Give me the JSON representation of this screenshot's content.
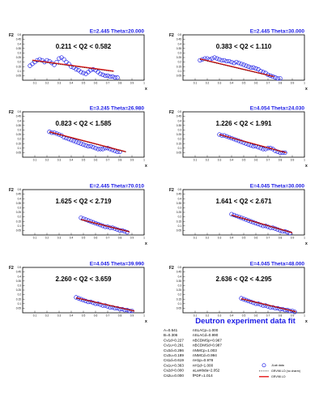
{
  "chart_data": [
    {
      "type": "scatter",
      "title": "E=2.445 Theta=20.000",
      "range_label": "0.211 < Q2 < 0.582",
      "xlabel": "x",
      "ylabel": "F2",
      "xlim": [
        0,
        1
      ],
      "ylim": [
        0,
        0.5
      ],
      "xticks": [
        "0.1",
        "0.2",
        "0.3",
        "0.4",
        "0.5",
        "0.6",
        "0.7",
        "0.8",
        "0.9",
        "1"
      ],
      "yticks": [
        "0.05",
        "0.1",
        "0.15",
        "0.2",
        "0.25",
        "0.3",
        "0.35",
        "0.4",
        "0.45",
        "0.5"
      ],
      "series": [
        {
          "role": "data",
          "x": [
            0.06,
            0.08,
            0.1,
            0.12,
            0.14,
            0.16,
            0.18,
            0.2,
            0.22,
            0.24,
            0.26,
            0.28,
            0.3,
            0.32,
            0.34,
            0.36,
            0.38,
            0.4,
            0.42,
            0.44,
            0.46,
            0.48,
            0.5,
            0.52,
            0.54,
            0.56,
            0.58,
            0.6,
            0.62,
            0.64,
            0.66,
            0.68,
            0.7,
            0.72,
            0.74,
            0.76,
            0.78
          ],
          "y": [
            0.16,
            0.18,
            0.2,
            0.22,
            0.23,
            0.22,
            0.2,
            0.22,
            0.21,
            0.19,
            0.17,
            0.2,
            0.24,
            0.25,
            0.23,
            0.2,
            0.18,
            0.15,
            0.14,
            0.12,
            0.11,
            0.09,
            0.08,
            0.07,
            0.09,
            0.11,
            0.12,
            0.11,
            0.09,
            0.07,
            0.06,
            0.05,
            0.05,
            0.04,
            0.04,
            0.03,
            0.03
          ]
        },
        {
          "role": "fit",
          "x": [
            0.08,
            0.75
          ],
          "y": [
            0.22,
            0.1
          ]
        },
        {
          "role": "fit_nocharm",
          "x": [
            0.08,
            0.75
          ],
          "y": [
            0.215,
            0.095
          ]
        }
      ]
    },
    {
      "type": "scatter",
      "title": "E=2.445 Theta=30.000",
      "range_label": "0.383 < Q2 < 1.110",
      "xlabel": "x",
      "ylabel": "F2",
      "xlim": [
        0,
        1
      ],
      "ylim": [
        0,
        0.5
      ],
      "xticks": [
        "0.1",
        "0.2",
        "0.3",
        "0.4",
        "0.5",
        "0.6",
        "0.7",
        "0.8",
        "0.9",
        "1"
      ],
      "yticks": [
        "0.05",
        "0.1",
        "0.15",
        "0.2",
        "0.25",
        "0.3",
        "0.35",
        "0.4",
        "0.45",
        "0.5"
      ],
      "series": [
        {
          "role": "data",
          "x": [
            0.14,
            0.16,
            0.18,
            0.2,
            0.22,
            0.24,
            0.26,
            0.28,
            0.3,
            0.32,
            0.34,
            0.36,
            0.38,
            0.4,
            0.42,
            0.44,
            0.46,
            0.48,
            0.5,
            0.52,
            0.54,
            0.56,
            0.58,
            0.6,
            0.62,
            0.64,
            0.66,
            0.68,
            0.7,
            0.72,
            0.74,
            0.76,
            0.78,
            0.8
          ],
          "y": [
            0.22,
            0.23,
            0.24,
            0.24,
            0.23,
            0.24,
            0.25,
            0.24,
            0.23,
            0.22,
            0.22,
            0.21,
            0.21,
            0.2,
            0.19,
            0.2,
            0.19,
            0.18,
            0.17,
            0.16,
            0.15,
            0.14,
            0.14,
            0.13,
            0.12,
            0.1,
            0.09,
            0.08,
            0.06,
            0.05,
            0.04,
            0.03,
            0.02,
            0.02
          ]
        },
        {
          "role": "fit",
          "x": [
            0.14,
            0.75
          ],
          "y": [
            0.235,
            0.04
          ]
        },
        {
          "role": "fit_nocharm",
          "x": [
            0.14,
            0.75
          ],
          "y": [
            0.23,
            0.038
          ]
        }
      ]
    },
    {
      "type": "scatter",
      "title": "E=3.245 Theta=26.980",
      "range_label": "0.823 < Q2 < 1.585",
      "xlabel": "x",
      "ylabel": "F2",
      "xlim": [
        0,
        1
      ],
      "ylim": [
        0,
        0.5
      ],
      "xticks": [
        "0.1",
        "0.2",
        "0.3",
        "0.4",
        "0.5",
        "0.6",
        "0.7",
        "0.8",
        "0.9",
        "1"
      ],
      "yticks": [
        "0.05",
        "0.1",
        "0.15",
        "0.2",
        "0.25",
        "0.3",
        "0.35",
        "0.4",
        "0.45",
        "0.5"
      ],
      "series": [
        {
          "role": "data",
          "x": [
            0.22,
            0.24,
            0.26,
            0.28,
            0.3,
            0.32,
            0.34,
            0.36,
            0.38,
            0.4,
            0.42,
            0.44,
            0.46,
            0.48,
            0.5,
            0.52,
            0.54,
            0.56,
            0.58,
            0.6,
            0.62,
            0.64,
            0.66,
            0.68,
            0.7,
            0.72,
            0.74,
            0.76,
            0.78,
            0.8
          ],
          "y": [
            0.28,
            0.27,
            0.27,
            0.26,
            0.25,
            0.24,
            0.22,
            0.21,
            0.2,
            0.19,
            0.18,
            0.17,
            0.16,
            0.15,
            0.14,
            0.13,
            0.12,
            0.12,
            0.11,
            0.1,
            0.09,
            0.09,
            0.09,
            0.1,
            0.1,
            0.09,
            0.08,
            0.07,
            0.06,
            0.06
          ]
        },
        {
          "role": "fit",
          "x": [
            0.22,
            0.85
          ],
          "y": [
            0.28,
            0.06
          ]
        },
        {
          "role": "fit_nocharm",
          "x": [
            0.22,
            0.85
          ],
          "y": [
            0.275,
            0.058
          ]
        }
      ]
    },
    {
      "type": "scatter",
      "title": "E=4.054 Theta=24.030",
      "range_label": "1.226 < Q2 < 1.991",
      "xlabel": "x",
      "ylabel": "F2",
      "xlim": [
        0,
        1
      ],
      "ylim": [
        0,
        0.5
      ],
      "xticks": [
        "0.1",
        "0.2",
        "0.3",
        "0.4",
        "0.5",
        "0.6",
        "0.7",
        "0.8",
        "0.9",
        "1"
      ],
      "yticks": [
        "0.05",
        "0.1",
        "0.15",
        "0.2",
        "0.25",
        "0.3",
        "0.35",
        "0.4",
        "0.45",
        "0.5"
      ],
      "series": [
        {
          "role": "data",
          "x": [
            0.3,
            0.32,
            0.34,
            0.36,
            0.38,
            0.4,
            0.42,
            0.44,
            0.46,
            0.48,
            0.5,
            0.52,
            0.54,
            0.56,
            0.58,
            0.6,
            0.62,
            0.64,
            0.66,
            0.68,
            0.7,
            0.72,
            0.74,
            0.76,
            0.78,
            0.8,
            0.82,
            0.84
          ],
          "y": [
            0.25,
            0.24,
            0.24,
            0.23,
            0.22,
            0.21,
            0.2,
            0.19,
            0.18,
            0.17,
            0.16,
            0.15,
            0.14,
            0.13,
            0.12,
            0.12,
            0.11,
            0.1,
            0.09,
            0.09,
            0.1,
            0.1,
            0.09,
            0.07,
            0.06,
            0.05,
            0.05,
            0.05
          ]
        },
        {
          "role": "fit",
          "x": [
            0.3,
            0.85
          ],
          "y": [
            0.25,
            0.05
          ]
        },
        {
          "role": "fit_nocharm",
          "x": [
            0.3,
            0.85
          ],
          "y": [
            0.245,
            0.048
          ]
        }
      ]
    },
    {
      "type": "scatter",
      "title": "E=2.445 Theta=70.010",
      "range_label": "1.625 < Q2 < 2.719",
      "xlabel": "x",
      "ylabel": "F2",
      "xlim": [
        0,
        1
      ],
      "ylim": [
        0,
        0.5
      ],
      "xticks": [
        "0.1",
        "0.2",
        "0.3",
        "0.4",
        "0.5",
        "0.6",
        "0.7",
        "0.8",
        "0.9",
        "1"
      ],
      "yticks": [
        "0.05",
        "0.1",
        "0.15",
        "0.2",
        "0.25",
        "0.3",
        "0.35",
        "0.4",
        "0.45",
        "0.5"
      ],
      "series": [
        {
          "role": "data",
          "x": [
            0.48,
            0.5,
            0.52,
            0.54,
            0.56,
            0.58,
            0.6,
            0.62,
            0.64,
            0.66,
            0.68,
            0.7,
            0.72,
            0.74,
            0.76,
            0.78,
            0.8,
            0.82,
            0.84,
            0.86
          ],
          "y": [
            0.19,
            0.18,
            0.17,
            0.16,
            0.15,
            0.14,
            0.13,
            0.12,
            0.11,
            0.1,
            0.09,
            0.09,
            0.08,
            0.08,
            0.07,
            0.06,
            0.05,
            0.05,
            0.04,
            0.03
          ]
        },
        {
          "role": "fit",
          "x": [
            0.48,
            0.88
          ],
          "y": [
            0.17,
            0.035
          ]
        },
        {
          "role": "fit_nocharm",
          "x": [
            0.48,
            0.88
          ],
          "y": [
            0.168,
            0.034
          ]
        }
      ]
    },
    {
      "type": "scatter",
      "title": "E=4.045 Theta=30.000",
      "range_label": "1.641 < Q2 < 2.671",
      "xlabel": "x",
      "ylabel": "F2",
      "xlim": [
        0,
        1
      ],
      "ylim": [
        0,
        0.5
      ],
      "xticks": [
        "0.1",
        "0.2",
        "0.3",
        "0.4",
        "0.5",
        "0.6",
        "0.7",
        "0.8",
        "0.9",
        "1"
      ],
      "yticks": [
        "0.05",
        "0.1",
        "0.15",
        "0.2",
        "0.25",
        "0.3",
        "0.35",
        "0.4",
        "0.45",
        "0.5"
      ],
      "series": [
        {
          "role": "data",
          "x": [
            0.4,
            0.42,
            0.44,
            0.46,
            0.48,
            0.5,
            0.52,
            0.54,
            0.56,
            0.58,
            0.6,
            0.62,
            0.64,
            0.66,
            0.68,
            0.7,
            0.72,
            0.74,
            0.76,
            0.78,
            0.8,
            0.82,
            0.84,
            0.86,
            0.88
          ],
          "y": [
            0.23,
            0.22,
            0.21,
            0.2,
            0.19,
            0.18,
            0.17,
            0.16,
            0.15,
            0.14,
            0.13,
            0.12,
            0.11,
            0.1,
            0.1,
            0.09,
            0.08,
            0.08,
            0.07,
            0.06,
            0.05,
            0.04,
            0.04,
            0.03,
            0.02
          ]
        },
        {
          "role": "fit",
          "x": [
            0.4,
            0.9
          ],
          "y": [
            0.22,
            0.025
          ]
        },
        {
          "role": "fit_nocharm",
          "x": [
            0.4,
            0.9
          ],
          "y": [
            0.215,
            0.024
          ]
        }
      ]
    },
    {
      "type": "scatter",
      "title": "E=4.045 Theta=39.990",
      "range_label": "2.260 < Q2 < 3.659",
      "xlabel": "x",
      "ylabel": "F2",
      "xlim": [
        0,
        1
      ],
      "ylim": [
        0,
        0.5
      ],
      "xticks": [
        "0.1",
        "0.2",
        "0.3",
        "0.4",
        "0.5",
        "0.6",
        "0.7",
        "0.8",
        "0.9",
        "1"
      ],
      "yticks": [
        "0.05",
        "0.1",
        "0.15",
        "0.2",
        "0.25",
        "0.3",
        "0.35",
        "0.4",
        "0.45",
        "0.5"
      ],
      "series": [
        {
          "role": "data",
          "x": [
            0.44,
            0.46,
            0.48,
            0.5,
            0.52,
            0.54,
            0.56,
            0.58,
            0.6,
            0.62,
            0.64,
            0.66,
            0.68,
            0.7,
            0.72,
            0.74,
            0.76,
            0.78,
            0.8,
            0.82,
            0.84,
            0.86,
            0.88,
            0.9
          ],
          "y": [
            0.17,
            0.16,
            0.15,
            0.14,
            0.13,
            0.12,
            0.12,
            0.11,
            0.1,
            0.1,
            0.09,
            0.08,
            0.08,
            0.07,
            0.06,
            0.06,
            0.05,
            0.05,
            0.04,
            0.04,
            0.03,
            0.03,
            0.02,
            0.02
          ]
        },
        {
          "role": "fit",
          "x": [
            0.44,
            0.92
          ],
          "y": [
            0.165,
            0.02
          ]
        },
        {
          "role": "fit_nocharm",
          "x": [
            0.44,
            0.92
          ],
          "y": [
            0.16,
            0.019
          ]
        }
      ]
    },
    {
      "type": "scatter",
      "title": "E=4.045 Theta=48.000",
      "range_label": "2.636 < Q2 < 4.295",
      "xlabel": "x",
      "ylabel": "F2",
      "xlim": [
        0,
        1
      ],
      "ylim": [
        0,
        0.5
      ],
      "xticks": [
        "0.1",
        "0.2",
        "0.3",
        "0.4",
        "0.5",
        "0.6",
        "0.7",
        "0.8",
        "0.9",
        "1"
      ],
      "yticks": [
        "0.05",
        "0.1",
        "0.15",
        "0.2",
        "0.25",
        "0.3",
        "0.35",
        "0.4",
        "0.45",
        "0.5"
      ],
      "series": [
        {
          "role": "data",
          "x": [
            0.48,
            0.5,
            0.52,
            0.54,
            0.56,
            0.58,
            0.6,
            0.62,
            0.64,
            0.66,
            0.68,
            0.7,
            0.72,
            0.74,
            0.76,
            0.78,
            0.8,
            0.82,
            0.84,
            0.86,
            0.88,
            0.9,
            0.92
          ],
          "y": [
            0.16,
            0.15,
            0.14,
            0.13,
            0.12,
            0.11,
            0.1,
            0.1,
            0.09,
            0.08,
            0.08,
            0.07,
            0.06,
            0.06,
            0.05,
            0.05,
            0.04,
            0.04,
            0.03,
            0.03,
            0.02,
            0.02,
            0.01
          ]
        },
        {
          "role": "fit",
          "x": [
            0.48,
            0.93
          ],
          "y": [
            0.155,
            0.012
          ]
        },
        {
          "role": "fit_nocharm",
          "x": [
            0.48,
            0.93
          ],
          "y": [
            0.15,
            0.011
          ]
        }
      ]
    }
  ],
  "summary": {
    "title": "Deutron experiment data fit",
    "params_col1": [
      "A=0.541",
      "B=0.306",
      "Cv1d=0.227",
      "Cv1u=0.291",
      "Cv2d=0.286",
      "Cv2u=0.189",
      "Cs1d=0.619",
      "Cs1u=0.363",
      "Cs2d=0.000",
      "Cs2u=0.000"
    ],
    "params_col2": [
      "nSLACp=1.000",
      "nSLACd=0.990",
      "nBCDMSp=0.967",
      "nBCDMSd=0.987",
      "nNMCp=1.003",
      "nNMCd=0.994",
      "nH1p=0.978",
      "nH1d=1.000",
      "aLambda=2.052",
      "fPDF=1.014"
    ],
    "legend": [
      {
        "label": "JLab data",
        "marker": "circle",
        "color": "#1a1ae6"
      },
      {
        "label": "GRV98 LO (no charm)",
        "marker": "dots",
        "color": "#000000"
      },
      {
        "label": "GRV98 LO",
        "marker": "line",
        "color": "#e61a1a"
      }
    ]
  },
  "colors": {
    "data": "#1a1ae6",
    "fit": "#e61a1a",
    "nocharm": "#000000",
    "title": "#1a1ae6"
  }
}
